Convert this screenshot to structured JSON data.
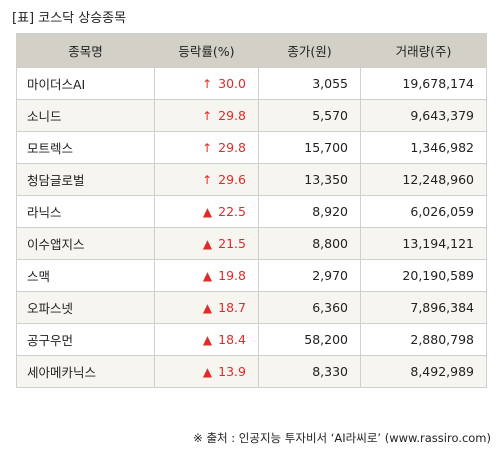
{
  "title": "[표] 코스닥 상승종목",
  "table": {
    "headers": [
      "종목명",
      "등락률(%)",
      "종가(원)",
      "거래량(주)"
    ],
    "rows": [
      {
        "name": "마이더스AI",
        "arrow": "↑",
        "rate": "30.0",
        "price": "3,055",
        "volume": "19,678,174"
      },
      {
        "name": "소니드",
        "arrow": "↑",
        "rate": "29.8",
        "price": "5,570",
        "volume": "9,643,379"
      },
      {
        "name": "모트렉스",
        "arrow": "↑",
        "rate": "29.8",
        "price": "15,700",
        "volume": "1,346,982"
      },
      {
        "name": "청담글로벌",
        "arrow": "↑",
        "rate": "29.6",
        "price": "13,350",
        "volume": "12,248,960"
      },
      {
        "name": "라닉스",
        "arrow": "▲",
        "rate": "22.5",
        "price": "8,920",
        "volume": "6,026,059"
      },
      {
        "name": "이수앱지스",
        "arrow": "▲",
        "rate": "21.5",
        "price": "8,800",
        "volume": "13,194,121"
      },
      {
        "name": "스맥",
        "arrow": "▲",
        "rate": "19.8",
        "price": "2,970",
        "volume": "20,190,589"
      },
      {
        "name": "오파스넷",
        "arrow": "▲",
        "rate": "18.7",
        "price": "6,360",
        "volume": "7,896,384"
      },
      {
        "name": "공구우먼",
        "arrow": "▲",
        "rate": "18.4",
        "price": "58,200",
        "volume": "2,880,798"
      },
      {
        "name": "세아메카닉스",
        "arrow": "▲",
        "rate": "13.9",
        "price": "8,330",
        "volume": "8,492,989"
      }
    ]
  },
  "source": "※ 출처 : 인공지능 투자비서 ‘AI라씨로’ (www.rassiro.com)",
  "colors": {
    "header_bg": "#d2d0c7",
    "row_alt_bg": "#f7f5ef",
    "up_color": "#e32a2a"
  }
}
